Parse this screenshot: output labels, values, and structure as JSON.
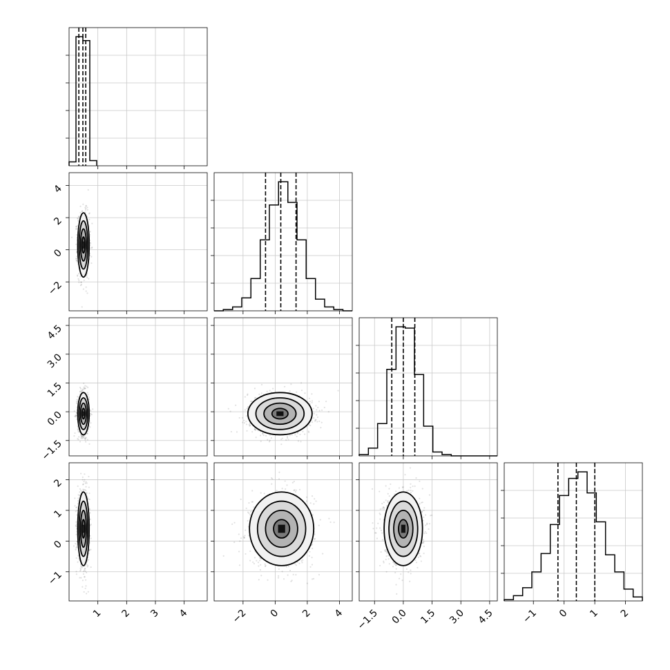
{
  "chart_data": {
    "type": "corner",
    "title": "",
    "variables": [
      {
        "name": "",
        "range": [
          0.0,
          4.8
        ],
        "ticks": [
          1,
          2,
          3,
          4
        ],
        "tick_labels": [
          "1",
          "2",
          "3",
          "4"
        ]
      },
      {
        "name": "",
        "range": [
          -3.8,
          4.8
        ],
        "ticks": [
          -2,
          0,
          2,
          4
        ],
        "tick_labels": [
          "−2",
          "0",
          "2",
          "4"
        ]
      },
      {
        "name": "",
        "range": [
          -2.3,
          4.9
        ],
        "ticks": [
          -1.5,
          0.0,
          1.5,
          3.0,
          4.5
        ],
        "tick_labels": [
          "−1.5",
          "0.0",
          "1.5",
          "3.0",
          "4.5"
        ]
      },
      {
        "name": "",
        "range": [
          -1.95,
          2.55
        ],
        "ticks": [
          -1,
          0,
          1,
          2
        ],
        "tick_labels": [
          "−1",
          "0",
          "1",
          "2"
        ]
      }
    ],
    "y_tick_labels": {
      "1": [
        "−2",
        "0",
        "2",
        "4"
      ],
      "2": [
        "−1.5",
        "0.0",
        "1.5",
        "3.0",
        "4.5"
      ],
      "3": [
        "−1",
        "0",
        "1",
        "2"
      ]
    },
    "diagonal_histograms": [
      {
        "variable": 0,
        "bin_edges": [
          0.0,
          0.24,
          0.48,
          0.72,
          0.96
        ],
        "counts": [
          3,
          100,
          97,
          4
        ],
        "quantiles": [
          0.34,
          0.48,
          0.58
        ]
      },
      {
        "variable": 1,
        "bin_edges": [
          -3.8,
          -3.23,
          -2.65,
          -2.08,
          -1.51,
          -0.93,
          -0.36,
          0.21,
          0.79,
          1.36,
          1.93,
          2.51,
          3.08,
          3.65,
          4.22,
          4.8
        ],
        "counts": [
          0,
          1,
          3,
          10,
          25,
          55,
          82,
          100,
          84,
          55,
          25,
          9,
          3,
          1,
          0
        ],
        "quantiles": [
          -0.6,
          0.35,
          1.3
        ]
      },
      {
        "variable": 2,
        "bin_edges": [
          -2.3,
          -1.82,
          -1.34,
          -0.86,
          -0.38,
          0.1,
          0.58,
          1.06,
          1.54,
          2.02,
          2.5,
          2.98,
          3.46,
          3.94,
          4.42,
          4.9
        ],
        "counts": [
          1,
          6,
          25,
          67,
          100,
          99,
          63,
          23,
          3,
          1,
          0,
          0,
          0,
          0,
          0
        ],
        "quantiles": [
          -0.6,
          0.0,
          0.6
        ]
      },
      {
        "variable": 3,
        "bin_edges": [
          -1.95,
          -1.65,
          -1.35,
          -1.05,
          -0.75,
          -0.45,
          -0.15,
          0.15,
          0.45,
          0.75,
          1.05,
          1.35,
          1.65,
          1.95,
          2.25,
          2.55
        ],
        "counts": [
          1,
          4,
          10,
          22,
          36,
          58,
          80,
          93,
          98,
          82,
          60,
          35,
          22,
          9,
          3
        ],
        "quantiles": [
          -0.2,
          0.4,
          1.0
        ]
      }
    ],
    "pair_densities": [
      {
        "x": 0,
        "y": 1,
        "center": [
          0.5,
          0.3
        ],
        "spread": [
          0.1,
          1.0
        ]
      },
      {
        "x": 0,
        "y": 2,
        "center": [
          0.5,
          -0.1
        ],
        "spread": [
          0.1,
          0.55
        ]
      },
      {
        "x": 1,
        "y": 2,
        "center": [
          0.3,
          -0.1
        ],
        "spread": [
          1.0,
          0.55
        ]
      },
      {
        "x": 0,
        "y": 3,
        "center": [
          0.5,
          0.4
        ],
        "spread": [
          0.1,
          0.6
        ]
      },
      {
        "x": 1,
        "y": 3,
        "center": [
          0.4,
          0.4
        ],
        "spread": [
          1.0,
          0.6
        ]
      },
      {
        "x": 2,
        "y": 3,
        "center": [
          0.0,
          0.4
        ],
        "spread": [
          0.5,
          0.6
        ]
      }
    ],
    "contour_levels_sigma": [
      0.5,
      1.0,
      1.5,
      2.0
    ],
    "grid": true,
    "legend": "none"
  }
}
